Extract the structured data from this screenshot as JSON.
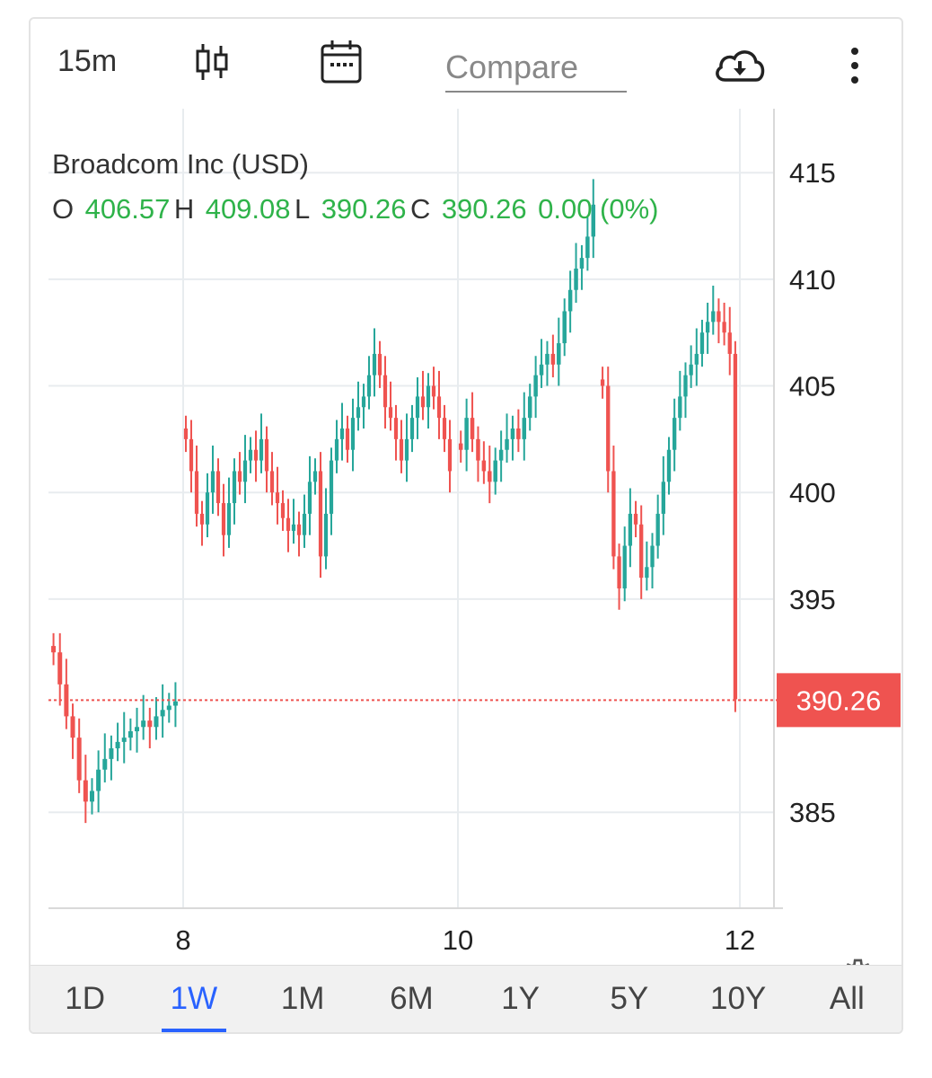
{
  "toolbar": {
    "interval": "15m",
    "chart_type_icon": "candlestick-icon",
    "calendar_icon": "calendar-icon",
    "compare_placeholder": "Compare",
    "download_icon": "cloud-download-icon",
    "more_icon": "more-vertical-icon"
  },
  "legend": {
    "title": "Broadcom Inc (USD)",
    "o_label": "O",
    "o_value": "406.57",
    "h_label": "H",
    "h_value": "409.08",
    "l_label": "L",
    "l_value": "390.26",
    "c_label": "C",
    "c_value": "390.26",
    "change": "0.00 (0%)"
  },
  "price_tag": "390.26",
  "settings_icon": "gear-icon",
  "colors": {
    "up": "#26a69a",
    "down": "#ef5350",
    "value_text": "#2fb34a",
    "active": "#2962ff"
  },
  "periods": [
    {
      "label": "1D",
      "active": false
    },
    {
      "label": "1W",
      "active": true
    },
    {
      "label": "1M",
      "active": false
    },
    {
      "label": "6M",
      "active": false
    },
    {
      "label": "1Y",
      "active": false
    },
    {
      "label": "5Y",
      "active": false
    },
    {
      "label": "10Y",
      "active": false
    },
    {
      "label": "All",
      "active": false
    }
  ],
  "chart_data": {
    "type": "candlestick",
    "ylim": [
      380.5,
      418
    ],
    "y_ticks": [
      415,
      410,
      405,
      400,
      395,
      385
    ],
    "x_ticks": [
      {
        "label": "8",
        "day": 8
      },
      {
        "label": "10",
        "day": 10
      },
      {
        "label": "12",
        "day": 12
      }
    ],
    "last_price": 390.26,
    "day_segments": [
      {
        "day": 7,
        "points": [
          392.5,
          391.0,
          389.5,
          388.5,
          386.5,
          385.5,
          386.0,
          387.0,
          387.5,
          388.0,
          388.3,
          388.5,
          388.8,
          389.0,
          389.3,
          389.0,
          389.5,
          389.8,
          390.0,
          390.2
        ]
      },
      {
        "day": 8,
        "points": [
          402.5,
          401.0,
          399.0,
          398.5,
          400.0,
          401.0,
          399.5,
          398.0,
          399.5,
          401.0,
          400.5,
          401.5,
          402.0,
          401.5,
          402.5,
          401.0,
          400.0,
          399.5,
          398.8,
          398.2,
          398.5,
          398.0,
          399.0,
          400.5,
          401.0,
          397.0,
          399.0,
          401.5,
          402.5,
          403.0,
          402.0,
          403.5,
          404.0,
          404.5,
          405.5,
          406.5,
          405.5,
          404.0,
          403.5,
          402.5,
          401.5,
          402.5,
          403.5,
          404.5,
          404.0,
          405.0,
          404.5,
          403.5,
          402.5,
          401.0
        ]
      },
      {
        "day": 10,
        "points": [
          402.0,
          403.5,
          402.5,
          401.5,
          401.0,
          400.5,
          401.5,
          402.0,
          402.5,
          403.0,
          402.5,
          403.5,
          404.5,
          405.5,
          406.0,
          406.5,
          406.0,
          407.0,
          408.5,
          409.5,
          410.5,
          411.0,
          412.0,
          413.5
        ]
      },
      {
        "day": 11,
        "points": [
          405.0,
          401.0,
          397.0,
          395.5,
          397.5,
          399.0,
          398.5,
          396.0,
          396.5,
          397.5,
          399.0,
          400.5,
          402.0,
          403.5,
          404.5,
          405.5,
          406.0,
          406.5,
          407.5,
          408.0,
          408.5,
          408.0,
          407.5,
          406.5,
          390.3
        ]
      }
    ]
  }
}
